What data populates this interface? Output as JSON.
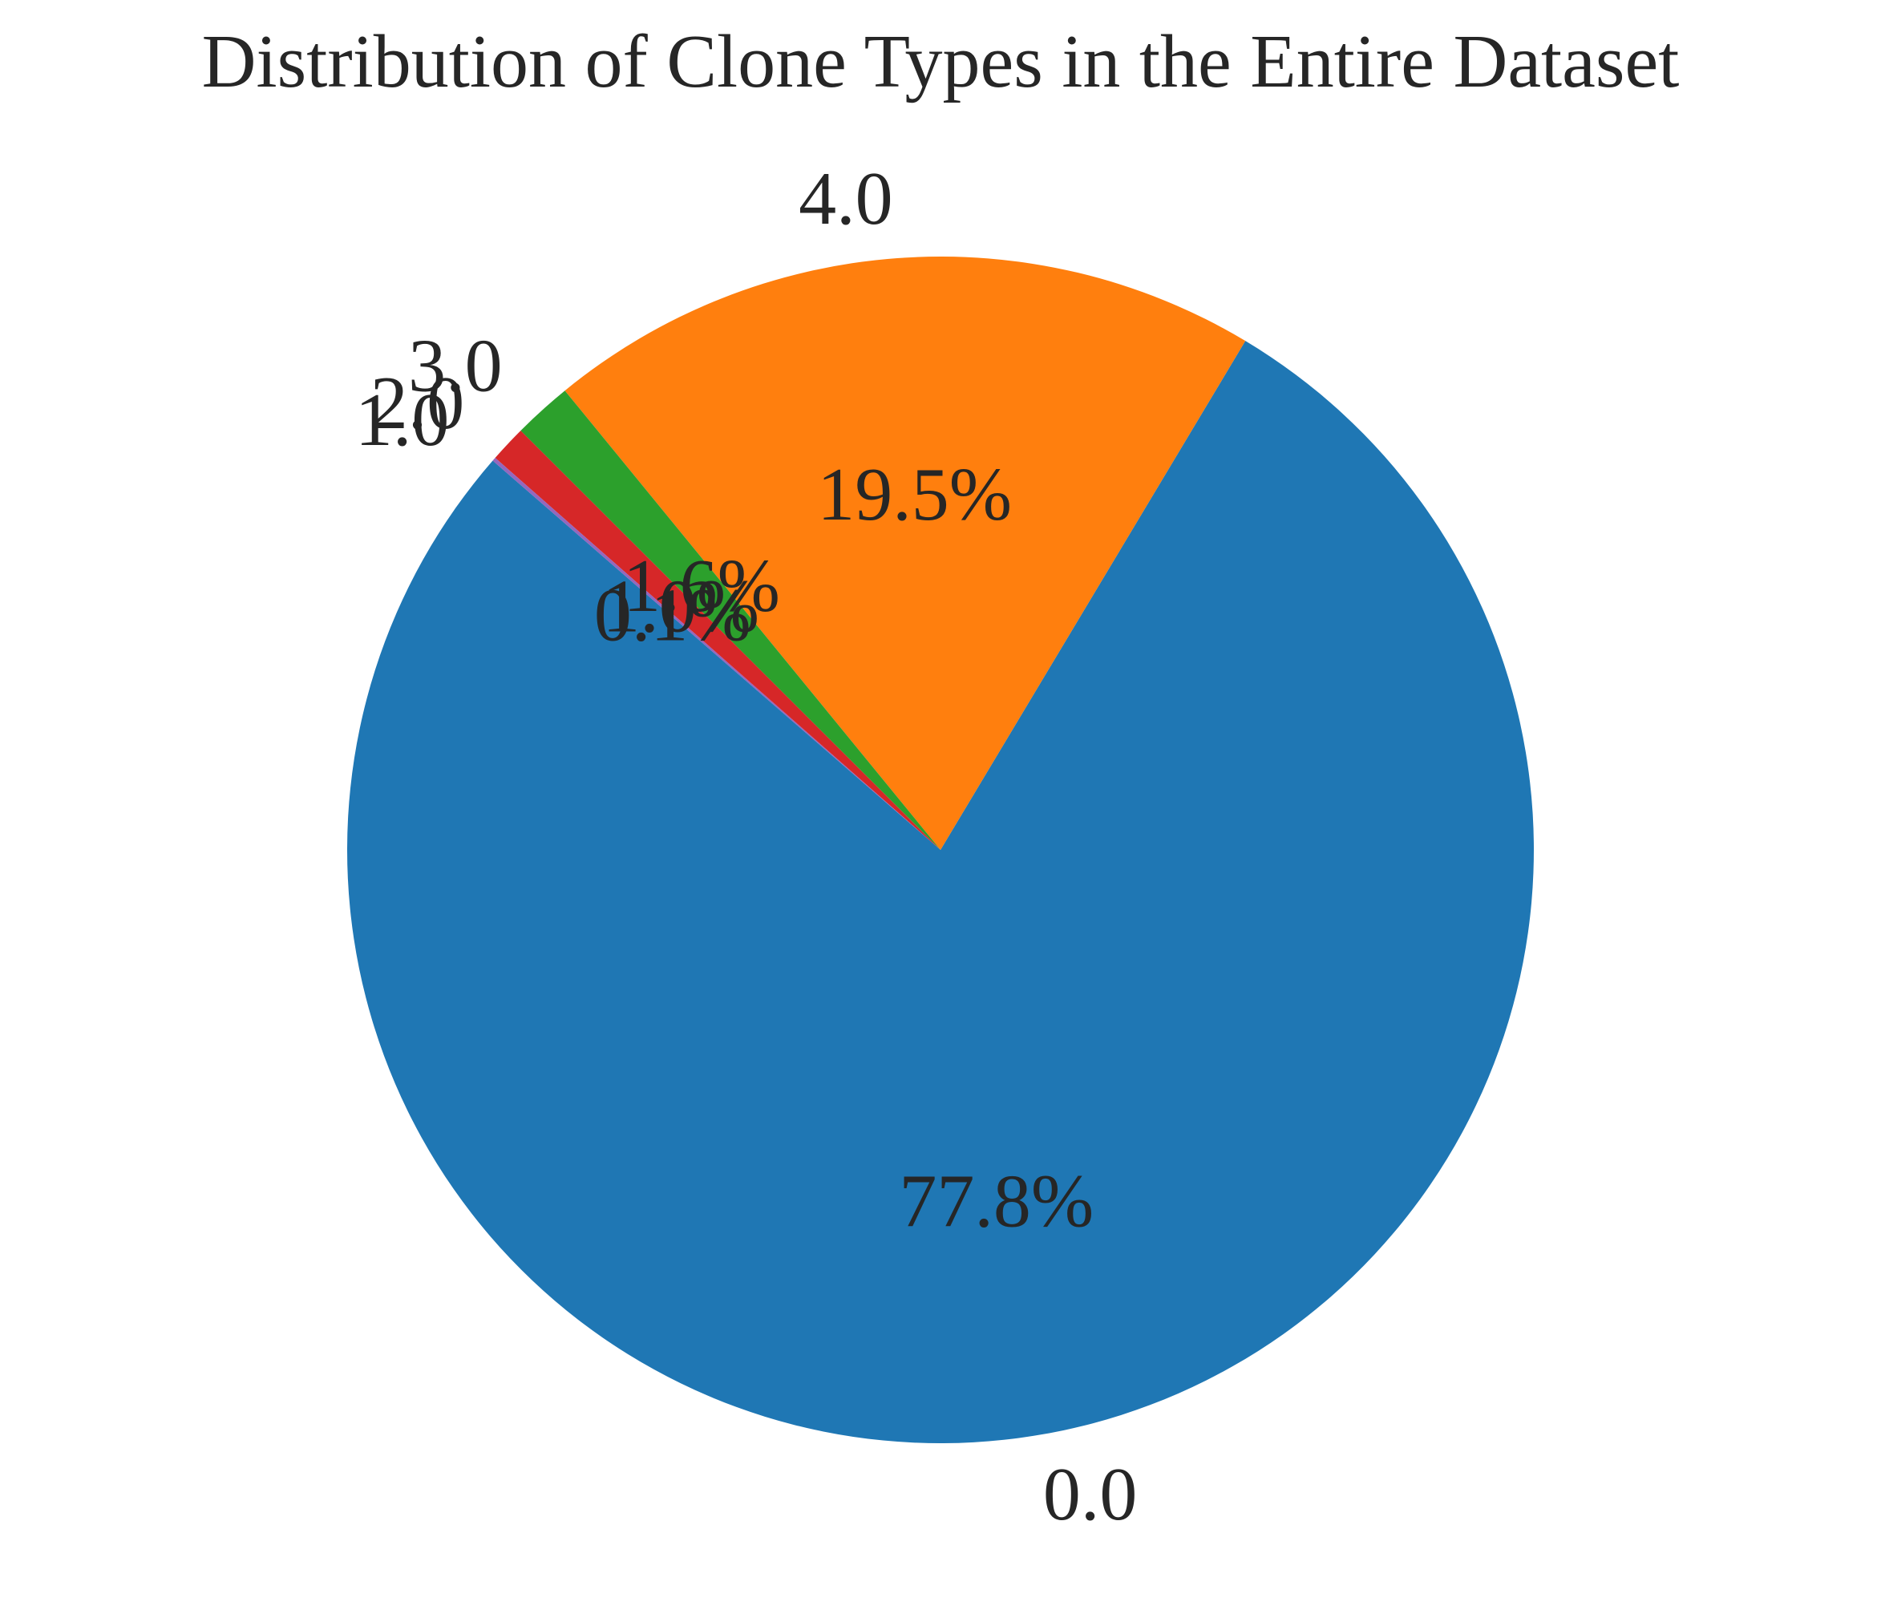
{
  "chart_data": {
    "type": "pie",
    "title": "Distribution of Clone Types in the Entire Dataset",
    "slices": [
      {
        "label": "0.0",
        "percent_label": "77.8%",
        "value": 77.8,
        "color": "#1f77b4"
      },
      {
        "label": "4.0",
        "percent_label": "19.5%",
        "value": 19.5,
        "color": "#ff7f0e"
      },
      {
        "label": "3.0",
        "percent_label": "1.6%",
        "value": 1.6,
        "color": "#2ca02c"
      },
      {
        "label": "2.0",
        "percent_label": "1.0%",
        "value": 1.0,
        "color": "#d62728"
      },
      {
        "label": "1.0",
        "percent_label": "0.1%",
        "value": 0.1,
        "color": "#9467bd"
      }
    ],
    "start_angle_deg": 139,
    "direction": "counterclockwise",
    "legend": "none"
  }
}
